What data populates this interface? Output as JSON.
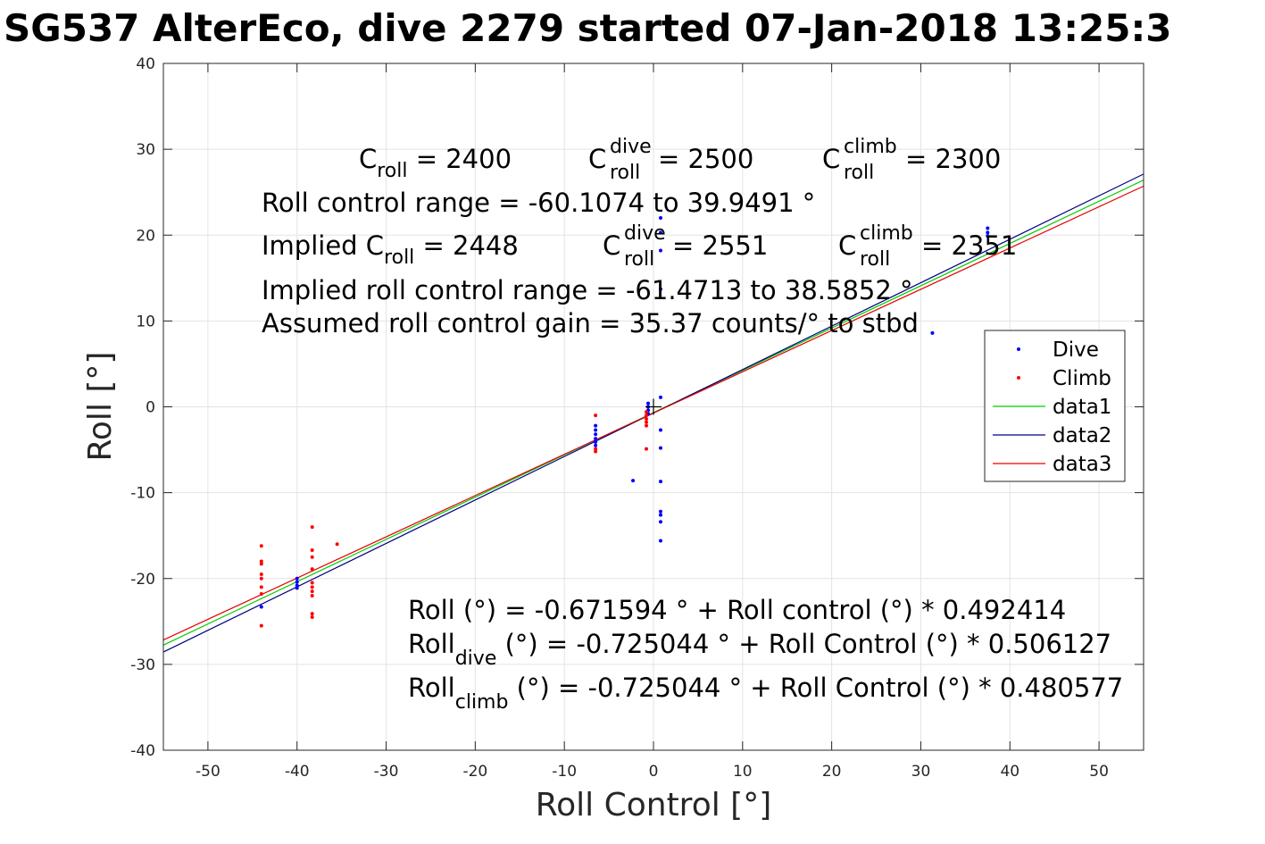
{
  "chart_data": {
    "type": "scatter",
    "title": "SG537 AlterEco, dive 2279 started 07-Jan-2018 13:25:3",
    "xlabel": "Roll Control [°]",
    "ylabel": "Roll [°]",
    "xlim": [
      -55,
      55
    ],
    "ylim": [
      -40,
      40
    ],
    "xticks": [
      -50,
      -40,
      -30,
      -20,
      -10,
      0,
      10,
      20,
      30,
      40,
      50
    ],
    "yticks": [
      -40,
      -30,
      -20,
      -10,
      0,
      10,
      20,
      30,
      40
    ],
    "grid": true,
    "legend": {
      "placement": "right",
      "entries": [
        "Dive",
        "Climb",
        "data1",
        "data2",
        "data3"
      ]
    },
    "colors": {
      "dive": "#0000ff",
      "climb": "#ff0000",
      "data1": "#00cc00",
      "data2": "#000080",
      "data3": "#e60000"
    },
    "series": [
      {
        "name": "Dive",
        "kind": "points",
        "points": [
          [
            -44,
            -23.3
          ],
          [
            -40,
            -20.0
          ],
          [
            -40,
            -20.4
          ],
          [
            -40,
            -20.8
          ],
          [
            -40,
            -21.1
          ],
          [
            -6.5,
            -2.2
          ],
          [
            -6.5,
            -2.7
          ],
          [
            -6.5,
            -3.2
          ],
          [
            -6.5,
            -3.7
          ],
          [
            -6.5,
            -4.1
          ],
          [
            -6.5,
            -4.5
          ],
          [
            -2.3,
            -8.6
          ],
          [
            -0.6,
            0.4
          ],
          [
            -0.6,
            0.0
          ],
          [
            -0.6,
            -0.4
          ],
          [
            -0.6,
            -0.8
          ],
          [
            0.8,
            22.0
          ],
          [
            0.8,
            20.3
          ],
          [
            0.8,
            18.2
          ],
          [
            0.8,
            13.7
          ],
          [
            0.8,
            1.1
          ],
          [
            0.8,
            -2.7
          ],
          [
            0.8,
            -4.8
          ],
          [
            0.8,
            -8.7
          ],
          [
            0.8,
            -12.2
          ],
          [
            0.8,
            -12.6
          ],
          [
            0.8,
            -13.4
          ],
          [
            0.8,
            -15.6
          ],
          [
            31.3,
            8.6
          ],
          [
            37.5,
            20.8
          ],
          [
            37.5,
            20.3
          ],
          [
            37.5,
            19.9
          ]
        ]
      },
      {
        "name": "Climb",
        "kind": "points",
        "points": [
          [
            -44,
            -16.2
          ],
          [
            -44,
            -18.0
          ],
          [
            -44,
            -18.3
          ],
          [
            -44,
            -19.5
          ],
          [
            -44,
            -20.0
          ],
          [
            -44,
            -21.0
          ],
          [
            -44,
            -21.8
          ],
          [
            -44,
            -25.5
          ],
          [
            -38.3,
            -14.0
          ],
          [
            -38.3,
            -16.7
          ],
          [
            -38.3,
            -17.5
          ],
          [
            -38.3,
            -18.9
          ],
          [
            -38.3,
            -20.5
          ],
          [
            -38.3,
            -21.0
          ],
          [
            -38.3,
            -21.5
          ],
          [
            -38.3,
            -22.0
          ],
          [
            -38.3,
            -24.1
          ],
          [
            -38.3,
            -24.5
          ],
          [
            -35.5,
            -16.0
          ],
          [
            -6.5,
            -1.0
          ],
          [
            -6.5,
            -4.9
          ],
          [
            -6.5,
            -5.2
          ],
          [
            -0.8,
            -0.6
          ],
          [
            -0.8,
            -1.0
          ],
          [
            -0.8,
            -1.4
          ],
          [
            -0.8,
            -1.8
          ],
          [
            -0.8,
            -2.2
          ],
          [
            -0.8,
            -4.9
          ]
        ]
      },
      {
        "name": "data1",
        "kind": "line",
        "intercept": -0.671594,
        "slope": 0.492414
      },
      {
        "name": "data2",
        "kind": "line",
        "intercept": -0.725044,
        "slope": 0.506127
      },
      {
        "name": "data3",
        "kind": "line",
        "intercept": -0.725044,
        "slope": 0.480577
      }
    ],
    "marker": {
      "type": "plus",
      "x": 0,
      "y": 0
    },
    "annotations": {
      "c_roll": {
        "base": "C",
        "sub": "roll",
        "rest": " = 2400"
      },
      "c_roll_dive": {
        "base": "C",
        "sup": "dive",
        "sub": "roll",
        "rest": " = 2500"
      },
      "c_roll_climb": {
        "base": "C",
        "sup": "climb",
        "sub": "roll",
        "rest": " = 2300"
      },
      "range": "Roll control range = -60.1074 to 39.9491 °",
      "implied_c_roll": {
        "pre": "Implied C",
        "sub": "roll",
        "rest": " = 2448"
      },
      "implied_c_roll_dive": {
        "base": "C",
        "sup": "dive",
        "sub": "roll",
        "rest": " = 2551"
      },
      "implied_c_roll_climb": {
        "base": "C",
        "sup": "climb",
        "sub": "roll",
        "rest": " = 2351"
      },
      "implied_range": "Implied roll control range = -61.4713 to 38.5852 °",
      "gain": "Assumed roll control gain = 35.37 counts/° to stbd",
      "fit": "Roll (°) = -0.671594 ° + Roll control (°) * 0.492414",
      "fit_dive": {
        "base": "Roll",
        "sub": "dive",
        "rest": " (°) = -0.725044 ° + Roll Control (°) * 0.506127"
      },
      "fit_climb": {
        "base": "Roll",
        "sub": "climb",
        "rest": " (°) = -0.725044 ° + Roll Control (°) * 0.480577"
      }
    }
  }
}
